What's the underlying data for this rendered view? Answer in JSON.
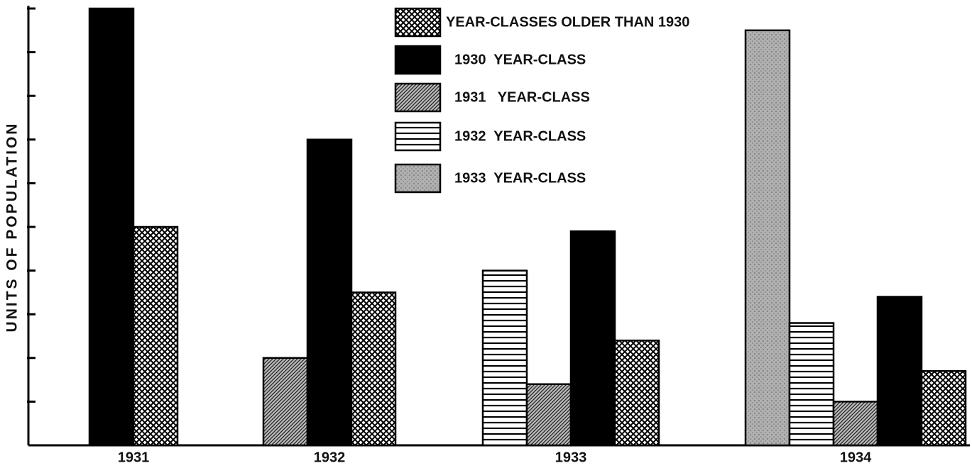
{
  "chart_data": {
    "type": "bar",
    "y_label": "UNITS OF POPULATION",
    "categories": [
      "1931",
      "1932",
      "1933",
      "1934"
    ],
    "ylim": [
      0,
      10
    ],
    "yticks": [
      1,
      2,
      3,
      4,
      5,
      6,
      7,
      8,
      9,
      10
    ],
    "series": [
      {
        "name": "YEAR-CLASSES OLDER THAN 1930",
        "pattern": "crosshatch",
        "color": "#000000",
        "values": [
          5,
          3.5,
          2.4,
          1.7
        ]
      },
      {
        "name": "1930  YEAR-CLASS",
        "pattern": "solid",
        "color": "#000000",
        "values": [
          10,
          7,
          4.9,
          3.4
        ]
      },
      {
        "name": "1931   YEAR-CLASS",
        "pattern": "diagonal",
        "color": "#000000",
        "values": [
          null,
          2,
          1.4,
          1
        ]
      },
      {
        "name": "1932  YEAR-CLASS",
        "pattern": "horizontal",
        "color": "#000000",
        "values": [
          null,
          null,
          4,
          2.8
        ]
      },
      {
        "name": "1933  YEAR-CLASS",
        "pattern": "stipple",
        "color": "#000000",
        "values": [
          null,
          null,
          null,
          9.5
        ]
      }
    ]
  }
}
